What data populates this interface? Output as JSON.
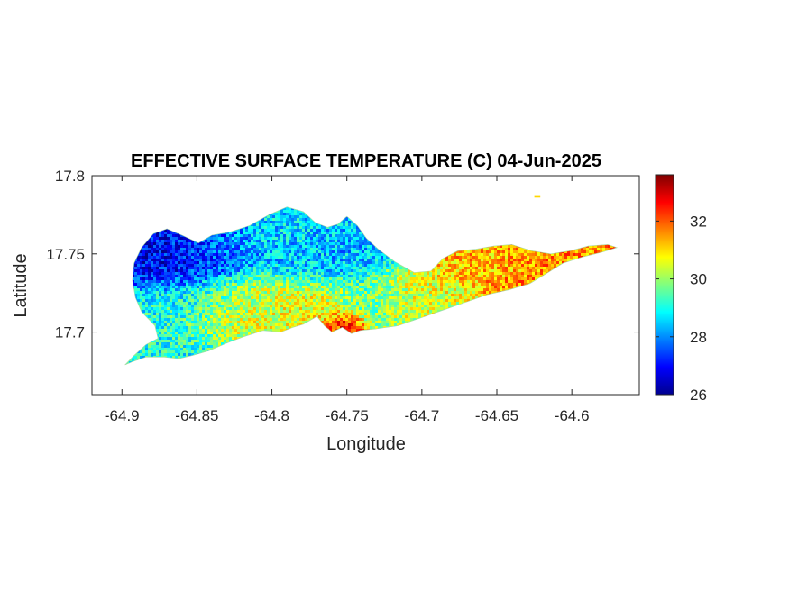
{
  "chart_data": {
    "type": "heatmap",
    "title": "EFFECTIVE SURFACE TEMPERATURE (C) 04-Jun-2025",
    "xlabel": "Longitude",
    "ylabel": "Latitude",
    "xlim": [
      -64.92,
      -64.555
    ],
    "ylim": [
      17.66,
      17.8
    ],
    "xticks": [
      -64.9,
      -64.85,
      -64.8,
      -64.75,
      -64.7,
      -64.65,
      -64.6
    ],
    "xtick_labels": [
      "-64.9",
      "-64.85",
      "-64.8",
      "-64.75",
      "-64.7",
      "-64.65",
      "-64.6"
    ],
    "yticks": [
      17.7,
      17.75,
      17.8
    ],
    "ytick_labels": [
      "17.7",
      "17.75",
      "17.8"
    ],
    "colorbar": {
      "colormap": "jet",
      "range": [
        26,
        33.6
      ],
      "ticks": [
        26,
        28,
        30,
        32
      ],
      "tick_labels": [
        "26",
        "28",
        "30",
        "32"
      ]
    },
    "grid": false,
    "outline": [
      [
        -64.898,
        17.679
      ],
      [
        -64.892,
        17.685
      ],
      [
        -64.884,
        17.692
      ],
      [
        -64.876,
        17.696
      ],
      [
        -64.878,
        17.704
      ],
      [
        -64.887,
        17.713
      ],
      [
        -64.891,
        17.722
      ],
      [
        -64.893,
        17.733
      ],
      [
        -64.892,
        17.744
      ],
      [
        -64.887,
        17.754
      ],
      [
        -64.879,
        17.763
      ],
      [
        -64.87,
        17.766
      ],
      [
        -64.86,
        17.762
      ],
      [
        -64.849,
        17.757
      ],
      [
        -64.84,
        17.762
      ],
      [
        -64.828,
        17.764
      ],
      [
        -64.815,
        17.768
      ],
      [
        -64.802,
        17.775
      ],
      [
        -64.79,
        17.78
      ],
      [
        -64.779,
        17.777
      ],
      [
        -64.771,
        17.77
      ],
      [
        -64.763,
        17.767
      ],
      [
        -64.756,
        17.769
      ],
      [
        -64.75,
        17.774
      ],
      [
        -64.743,
        17.768
      ],
      [
        -64.737,
        17.76
      ],
      [
        -64.729,
        17.753
      ],
      [
        -64.718,
        17.745
      ],
      [
        -64.705,
        17.738
      ],
      [
        -64.694,
        17.739
      ],
      [
        -64.686,
        17.747
      ],
      [
        -64.676,
        17.752
      ],
      [
        -64.664,
        17.753
      ],
      [
        -64.652,
        17.755
      ],
      [
        -64.64,
        17.756
      ],
      [
        -64.627,
        17.752
      ],
      [
        -64.614,
        17.75
      ],
      [
        -64.601,
        17.752
      ],
      [
        -64.589,
        17.755
      ],
      [
        -64.576,
        17.756
      ],
      [
        -64.57,
        17.754
      ],
      [
        -64.58,
        17.751
      ],
      [
        -64.593,
        17.748
      ],
      [
        -64.606,
        17.744
      ],
      [
        -64.616,
        17.738
      ],
      [
        -64.628,
        17.731
      ],
      [
        -64.642,
        17.727
      ],
      [
        -64.656,
        17.724
      ],
      [
        -64.671,
        17.719
      ],
      [
        -64.686,
        17.714
      ],
      [
        -64.701,
        17.709
      ],
      [
        -64.716,
        17.704
      ],
      [
        -64.731,
        17.702
      ],
      [
        -64.741,
        17.701
      ],
      [
        -64.747,
        17.699
      ],
      [
        -64.753,
        17.703
      ],
      [
        -64.76,
        17.7
      ],
      [
        -64.765,
        17.704
      ],
      [
        -64.77,
        17.71
      ],
      [
        -64.779,
        17.705
      ],
      [
        -64.786,
        17.703
      ],
      [
        -64.794,
        17.7
      ],
      [
        -64.806,
        17.701
      ],
      [
        -64.819,
        17.697
      ],
      [
        -64.83,
        17.693
      ],
      [
        -64.842,
        17.688
      ],
      [
        -64.853,
        17.685
      ],
      [
        -64.862,
        17.683
      ],
      [
        -64.872,
        17.684
      ],
      [
        -64.884,
        17.684
      ],
      [
        -64.893,
        17.681
      ],
      [
        -64.898,
        17.679
      ]
    ],
    "islet": [
      [
        -64.625,
        17.787
      ],
      [
        -64.621,
        17.787
      ],
      [
        -64.621,
        17.786
      ],
      [
        -64.625,
        17.786
      ]
    ],
    "regions": [
      {
        "lon": -64.862,
        "lat": 17.747,
        "rx": 0.028,
        "ry": 0.016,
        "value": 26.9
      },
      {
        "lon": -64.835,
        "lat": 17.752,
        "rx": 0.025,
        "ry": 0.014,
        "value": 27.6
      },
      {
        "lon": -64.8,
        "lat": 17.758,
        "rx": 0.03,
        "ry": 0.014,
        "value": 28.6
      },
      {
        "lon": -64.77,
        "lat": 17.745,
        "rx": 0.03,
        "ry": 0.014,
        "value": 28.3
      },
      {
        "lon": -64.86,
        "lat": 17.712,
        "rx": 0.03,
        "ry": 0.016,
        "value": 29.0
      },
      {
        "lon": -64.808,
        "lat": 17.722,
        "rx": 0.035,
        "ry": 0.014,
        "value": 30.2
      },
      {
        "lon": -64.82,
        "lat": 17.706,
        "rx": 0.03,
        "ry": 0.009,
        "value": 30.6
      },
      {
        "lon": -64.775,
        "lat": 17.719,
        "rx": 0.025,
        "ry": 0.012,
        "value": 30.9
      },
      {
        "lon": -64.74,
        "lat": 17.722,
        "rx": 0.02,
        "ry": 0.012,
        "value": 29.4
      },
      {
        "lon": -64.7,
        "lat": 17.722,
        "rx": 0.03,
        "ry": 0.013,
        "value": 30.4
      },
      {
        "lon": -64.655,
        "lat": 17.738,
        "rx": 0.028,
        "ry": 0.013,
        "value": 31.3
      },
      {
        "lon": -64.61,
        "lat": 17.747,
        "rx": 0.025,
        "ry": 0.007,
        "value": 31.6
      },
      {
        "lon": -64.752,
        "lat": 17.706,
        "rx": 0.01,
        "ry": 0.006,
        "value": 32.7
      },
      {
        "lon": -64.64,
        "lat": 17.73,
        "rx": 0.015,
        "ry": 0.005,
        "value": 31.9
      }
    ]
  }
}
